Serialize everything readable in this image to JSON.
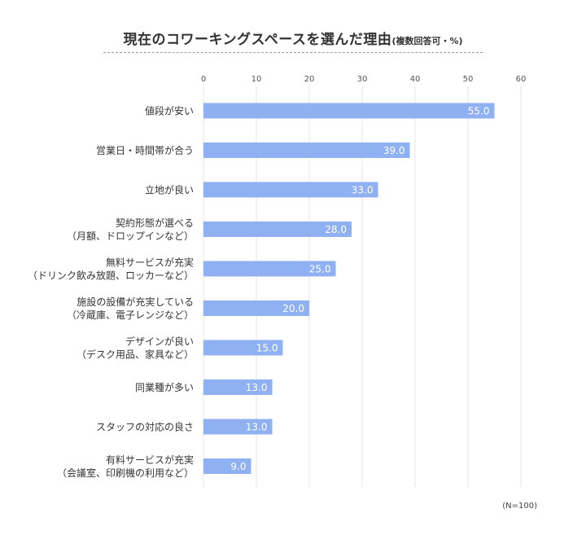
{
  "title": {
    "main": "現在のコワーキングスペースを選んだ理由",
    "sub": "(複数回答可・%)"
  },
  "note": "(N=100)",
  "colors": {
    "bar": "#8fb1f2",
    "grid": "#e6e6e6",
    "bar_label": "#ffffff",
    "category_label": "#333333"
  },
  "chart_data": {
    "type": "bar",
    "orientation": "horizontal",
    "title": "現在のコワーキングスペースを選んだ理由",
    "xlim": [
      0,
      60
    ],
    "ticks": [
      0,
      10,
      20,
      30,
      40,
      50,
      60
    ],
    "tick_labels": [
      "0",
      "10",
      "20",
      "30",
      "40",
      "50",
      "60"
    ],
    "grid": "vertical",
    "categories": [
      [
        "値段が安い"
      ],
      [
        "営業日・時間帯が合う"
      ],
      [
        "立地が良い"
      ],
      [
        "契約形態が選べる",
        "（月額、ドロップインなど）"
      ],
      [
        "無料サービスが充実",
        "（ドリンク飲み放題、ロッカーなど）"
      ],
      [
        "施設の設備が充実している",
        "（冷蔵庫、電子レンジなど）"
      ],
      [
        "デザインが良い",
        "（デスク用品、家具など）"
      ],
      [
        "同業種が多い"
      ],
      [
        "スタッフの対応の良さ"
      ],
      [
        "有料サービスが充実",
        "（会議室、印刷機の利用など）"
      ]
    ],
    "values": [
      55.0,
      39.0,
      33.0,
      28.0,
      25.0,
      20.0,
      15.0,
      13.0,
      13.0,
      9.0
    ],
    "value_labels": [
      "55.0",
      "39.0",
      "33.0",
      "28.0",
      "25.0",
      "20.0",
      "15.0",
      "13.0",
      "13.0",
      "9.0"
    ]
  }
}
